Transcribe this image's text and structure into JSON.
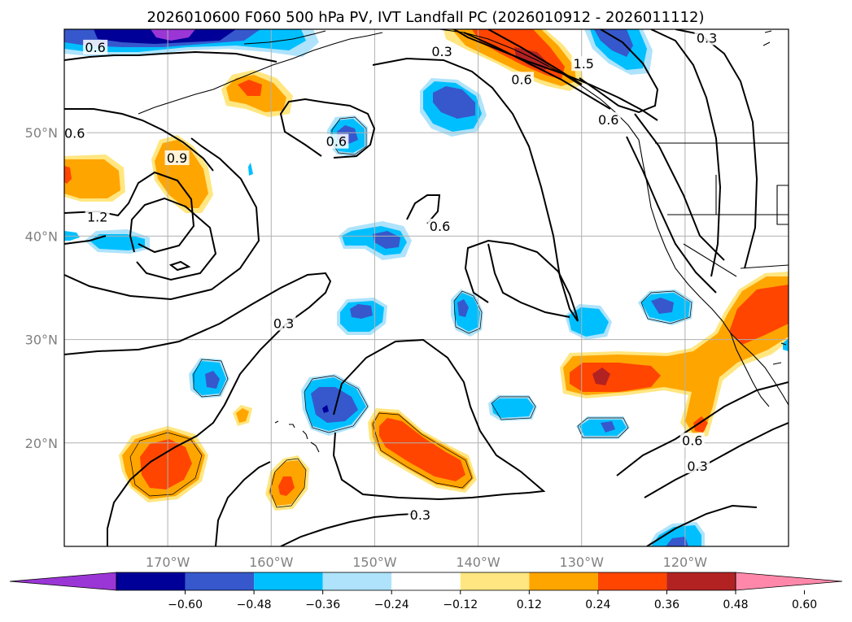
{
  "figure": {
    "title": "2026010600 F060 500 hPa PV, IVT Landfall PC (2026010912 - 2026011112)"
  },
  "map_data": {
    "type": "contour-map",
    "projection": "cylindrical",
    "lon_range": [
      -180,
      -110
    ],
    "lat_range": [
      10,
      60
    ],
    "grid": true,
    "lon_ticks": [
      -170,
      -160,
      -150,
      -140,
      -130,
      -120
    ],
    "lon_tick_labels": [
      "170°W",
      "160°W",
      "150°W",
      "140°W",
      "130°W",
      "120°W"
    ],
    "lat_ticks": [
      20,
      30,
      40,
      50
    ],
    "lat_tick_labels": [
      "20°N",
      "30°N",
      "40°N",
      "50°N"
    ],
    "contour_labels": [
      {
        "text": "0.6",
        "lon": -177.0,
        "lat": 58.2
      },
      {
        "text": "0.3",
        "lon": -143.5,
        "lat": 57.8
      },
      {
        "text": "0.3",
        "lon": -117.9,
        "lat": 59.1
      },
      {
        "text": "1.5",
        "lon": -129.8,
        "lat": 56.6
      },
      {
        "text": "0.6",
        "lon": -135.8,
        "lat": 55.1
      },
      {
        "text": "0.6",
        "lon": -127.4,
        "lat": 51.2
      },
      {
        "text": "0.6",
        "lon": -153.7,
        "lat": 49.1
      },
      {
        "text": "0.6",
        "lon": -179.0,
        "lat": 49.9
      },
      {
        "text": "0.9",
        "lon": -169.1,
        "lat": 47.5
      },
      {
        "text": "1.2",
        "lon": -176.8,
        "lat": 41.8
      },
      {
        "text": "0.6",
        "lon": -143.7,
        "lat": 40.9
      },
      {
        "text": "0.3",
        "lon": -158.8,
        "lat": 31.5
      },
      {
        "text": "0.6",
        "lon": -119.3,
        "lat": 20.2
      },
      {
        "text": "0.3",
        "lon": -118.8,
        "lat": 17.7
      },
      {
        "text": "0.3",
        "lon": -145.6,
        "lat": 13.0
      }
    ],
    "ivt_pc_shading_colors": {
      "neg_lt_-0.60": "#9b36d6",
      "-0.60_-0.48": "#000099",
      "-0.48_-0.36": "#3658cc",
      "-0.36_-0.24": "#00bfff",
      "-0.24_-0.12": "#aee3fb",
      "0.12_0.24": "#ffe680",
      "0.24_0.36": "#ffa500",
      "0.36_0.48": "#ff4500",
      "0.48_0.60": "#b22222",
      "pos_gt_0.60": "#ff88aa"
    }
  },
  "colorbar": {
    "colors": [
      "#9b36d6",
      "#000099",
      "#3658cc",
      "#00bfff",
      "#aee3fb",
      "#ffffff",
      "#ffe680",
      "#ffa500",
      "#ff4500",
      "#b22222",
      "#ff88aa"
    ],
    "tick_labels": [
      "−0.60",
      "−0.48",
      "−0.36",
      "−0.24",
      "−0.12",
      "0.12",
      "0.24",
      "0.36",
      "0.48",
      "0.60"
    ]
  }
}
